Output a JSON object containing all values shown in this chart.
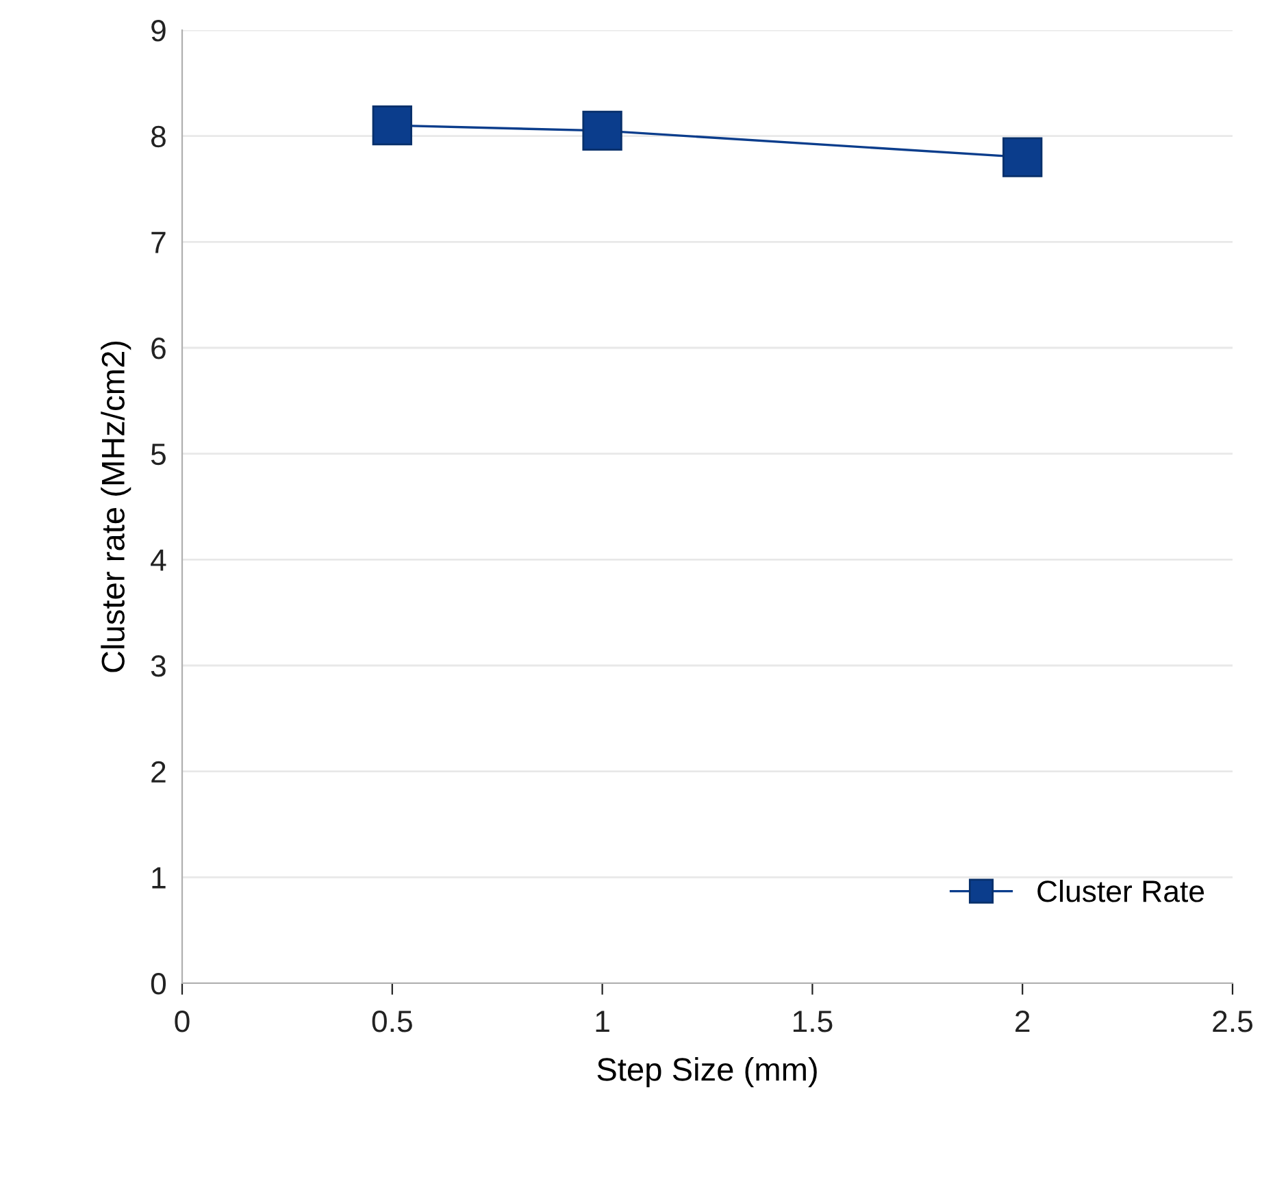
{
  "chart_data": {
    "type": "line",
    "xlabel": "Step Size (mm)",
    "ylabel": "Cluster rate (MHz/cm2)",
    "x": [
      0.5,
      1,
      2
    ],
    "series": [
      {
        "name": "Cluster Rate",
        "color": "#0b3d8c",
        "values": [
          8.1,
          8.05,
          7.8
        ]
      }
    ],
    "xlim": [
      0,
      2.5
    ],
    "xticks": [
      0,
      0.5,
      1,
      1.5,
      2,
      2.5
    ],
    "ylim": [
      0,
      9
    ],
    "yticks": [
      0,
      1,
      2,
      3,
      4,
      5,
      6,
      7,
      8,
      9
    ],
    "grid": "y",
    "legend": "bottom right",
    "marker": "square",
    "line_style": "solid"
  }
}
